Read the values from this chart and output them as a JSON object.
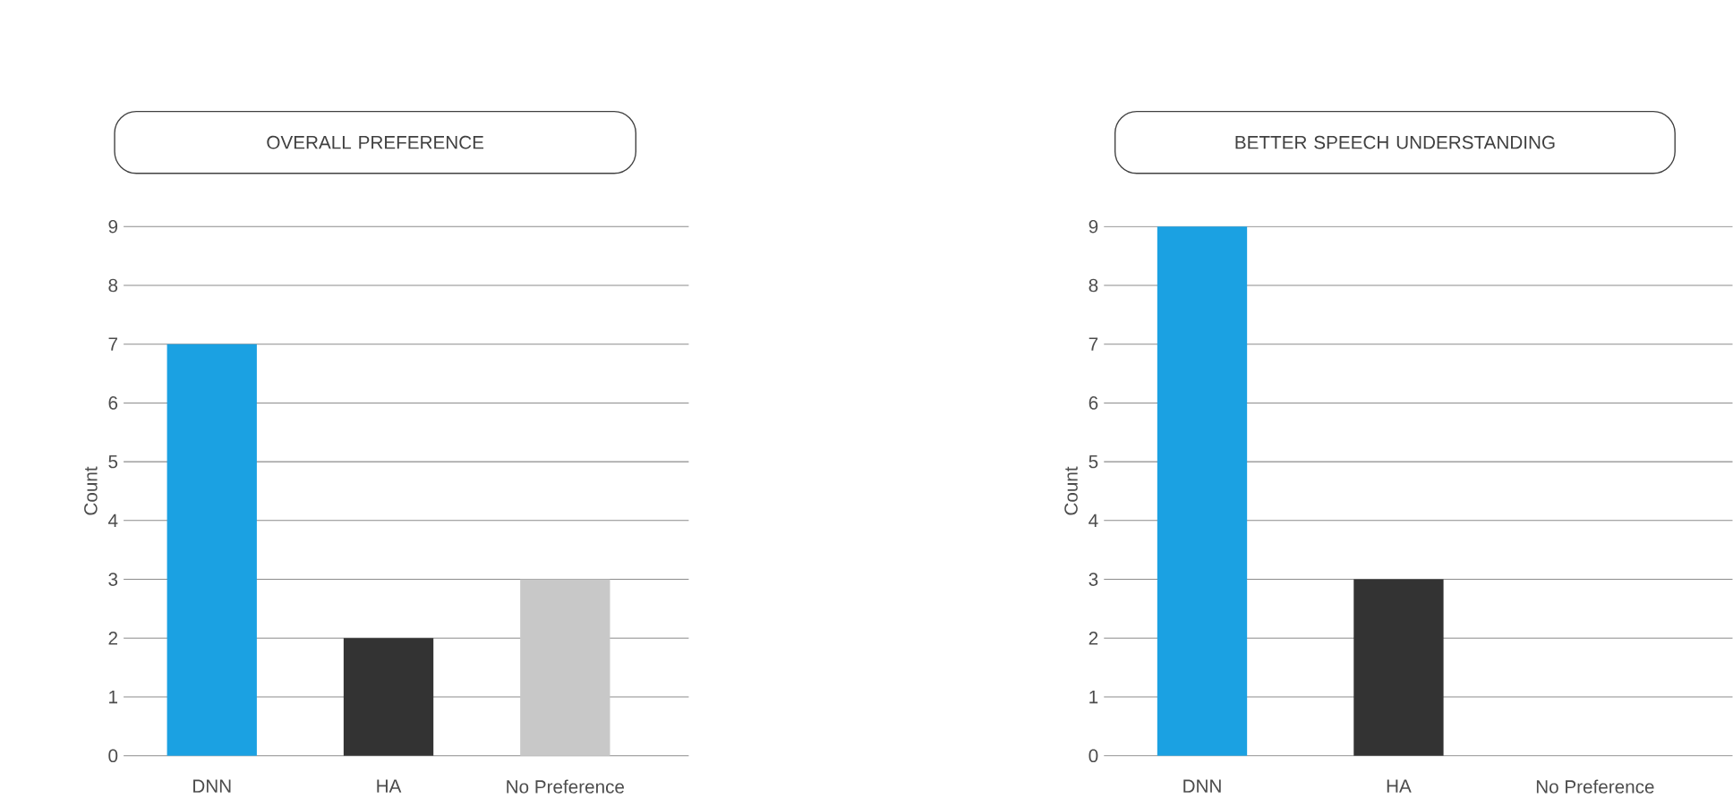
{
  "chart_data": [
    {
      "type": "bar",
      "title": "OVERALL PREFERENCE",
      "ylabel": "Count",
      "categories": [
        "DNN",
        "HA",
        "No Preference"
      ],
      "values": [
        7,
        2,
        3
      ],
      "colors": [
        "#1ba1e2",
        "#333333",
        "#c8c8c8"
      ],
      "ylim": [
        0,
        9
      ],
      "yticks": [
        0,
        1,
        2,
        3,
        4,
        5,
        6,
        7,
        8,
        9
      ],
      "grid": "y"
    },
    {
      "type": "bar",
      "title": "BETTER SPEECH UNDERSTANDING",
      "ylabel": "Count",
      "categories": [
        "DNN",
        "HA",
        "No Preference"
      ],
      "values": [
        9,
        3,
        0
      ],
      "colors": [
        "#1ba1e2",
        "#333333",
        "#c8c8c8"
      ],
      "ylim": [
        0,
        9
      ],
      "yticks": [
        0,
        1,
        2,
        3,
        4,
        5,
        6,
        7,
        8,
        9
      ],
      "grid": "y"
    }
  ]
}
